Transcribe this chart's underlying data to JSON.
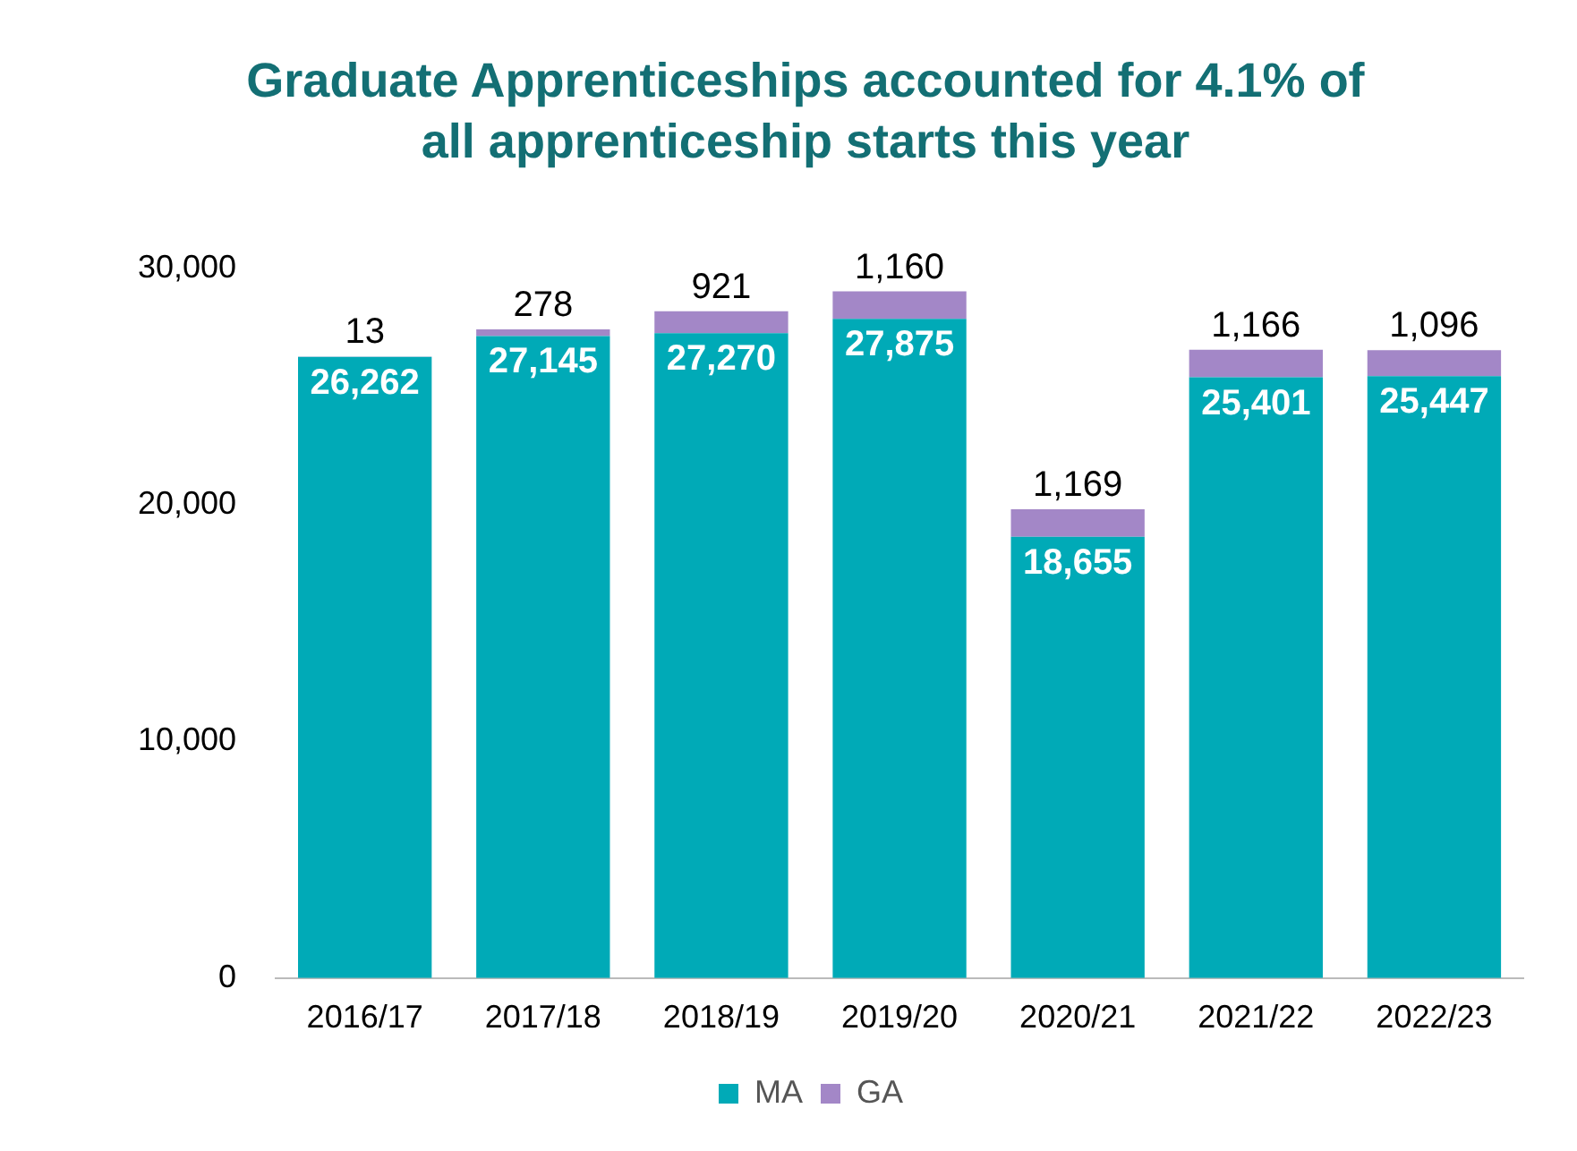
{
  "chart_data": {
    "type": "bar",
    "title": "Graduate Apprenticeships accounted for 4.1% of all apprenticeship starts this year",
    "categories": [
      "2016/17",
      "2017/18",
      "2018/19",
      "2019/20",
      "2020/21",
      "2021/22",
      "2022/23"
    ],
    "series": [
      {
        "name": "MA",
        "color": "#00aab7",
        "values": [
          26262,
          27145,
          27270,
          27875,
          18655,
          25401,
          25447
        ],
        "value_labels": [
          "26,262",
          "27,145",
          "27,270",
          "27,875",
          "18,655",
          "25,401",
          "25,447"
        ]
      },
      {
        "name": "GA",
        "color": "#a387c7",
        "values": [
          13,
          278,
          921,
          1160,
          1169,
          1166,
          1096
        ],
        "value_labels": [
          "13",
          "278",
          "921",
          "1,160",
          "1,169",
          "1,166",
          "1,096"
        ]
      }
    ],
    "stacked": true,
    "ylim": [
      0,
      30000
    ],
    "yticks": [
      {
        "value": 0,
        "label": "0"
      },
      {
        "value": 10000,
        "label": "10,000"
      },
      {
        "value": 20000,
        "label": "20,000"
      },
      {
        "value": 30000,
        "label": "30,000"
      }
    ],
    "grid": false,
    "legend": "bottom"
  }
}
